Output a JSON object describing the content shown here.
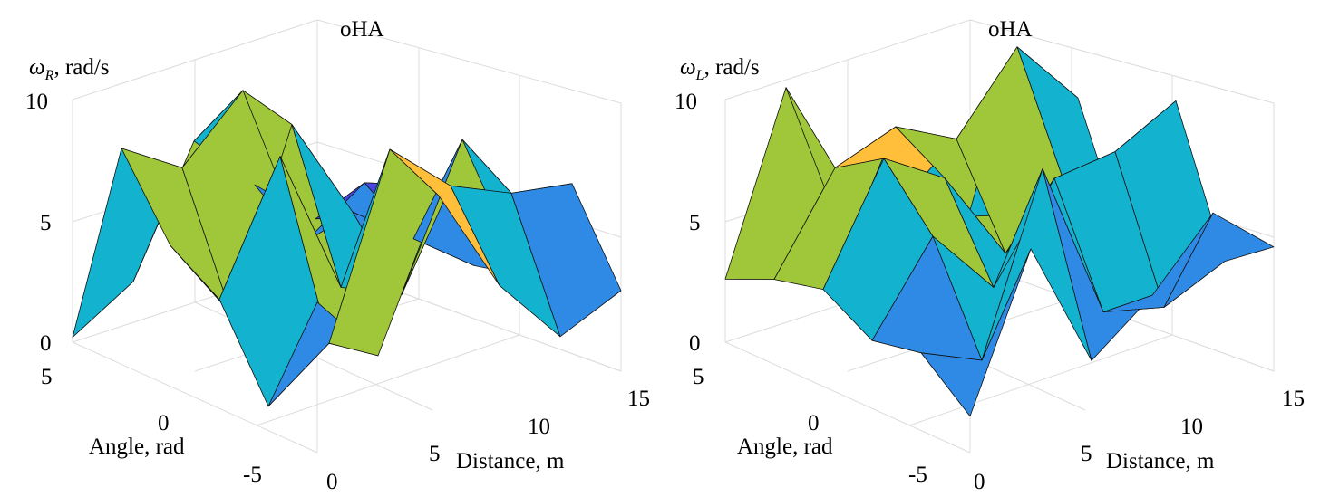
{
  "colors": {
    "dark": "#3d2db8",
    "violet": "#4a46e0",
    "blue": "#2f8ae6",
    "teal": "#13b3cf",
    "orange": "#ffbf3a",
    "yellow": "#f3ec24",
    "green": "#9fc739",
    "grid": "#dcdcdc"
  },
  "chart_data": [
    {
      "type": "surface3d",
      "title": "oHA",
      "zlabel_symbol": "ω",
      "zlabel_subscript": "R",
      "zlabel_unit": ", rad/s",
      "xlabel": "Distance, m",
      "ylabel": "Angle, rad",
      "xlim": [
        0,
        15
      ],
      "ylim": [
        -5,
        5
      ],
      "zlim": [
        0,
        10
      ],
      "xticks": [
        "0",
        "5",
        "10",
        "15"
      ],
      "yticks": [
        "5",
        "0",
        "-5"
      ],
      "zticks": [
        "0",
        "5",
        "10"
      ],
      "x": [
        0,
        3,
        6,
        9,
        12,
        15
      ],
      "y": [
        -5,
        -3,
        -1,
        1,
        3,
        5
      ],
      "z": [
        [
          6.2,
          3.1,
          8.8,
          4.2,
          1.2,
          2.2
        ],
        [
          1.0,
          2.7,
          9.8,
          7.4,
          6.2,
          5.7
        ],
        [
          4.5,
          9.5,
          3.2,
          2.0,
          7.5,
          1.0
        ],
        [
          5.8,
          2.1,
          9.0,
          4.5,
          2.5,
          0.5
        ],
        [
          8.9,
          7.2,
          9.5,
          2.3,
          3.9,
          2.9
        ],
        [
          0.2,
          1.6,
          6.5,
          3.8,
          1.5,
          0.7
        ]
      ]
    },
    {
      "type": "surface3d",
      "title": "oHA",
      "zlabel_symbol": "ω",
      "zlabel_subscript": "L",
      "zlabel_unit": ", rad/s",
      "xlabel": "Distance, m",
      "ylabel": "Angle, rad",
      "xlim": [
        0,
        15
      ],
      "ylim": [
        -5,
        5
      ],
      "zlim": [
        0,
        10
      ],
      "xticks": [
        "0",
        "5",
        "10",
        "15"
      ],
      "yticks": [
        "5",
        "0",
        "-5"
      ],
      "zticks": [
        "0",
        "5",
        "10"
      ],
      "x": [
        0,
        3,
        6,
        9,
        12,
        15
      ],
      "y": [
        -5,
        -3,
        -1,
        1,
        3,
        5
      ],
      "z": [
        [
          1.5,
          7.5,
          2.0,
          3.8,
          6.3,
          4.0
        ],
        [
          3.2,
          2.0,
          9.0,
          2.2,
          1.5,
          2.5
        ],
        [
          2.8,
          6.2,
          3.2,
          6.8,
          7.0,
          8.2
        ],
        [
          4.0,
          8.5,
          6.8,
          2.8,
          4.6,
          1.2
        ],
        [
          3.5,
          7.2,
          8.0,
          6.6,
          9.5,
          6.5
        ],
        [
          2.6,
          9.6,
          2.2,
          3.4,
          1.6,
          0.8
        ]
      ]
    }
  ]
}
